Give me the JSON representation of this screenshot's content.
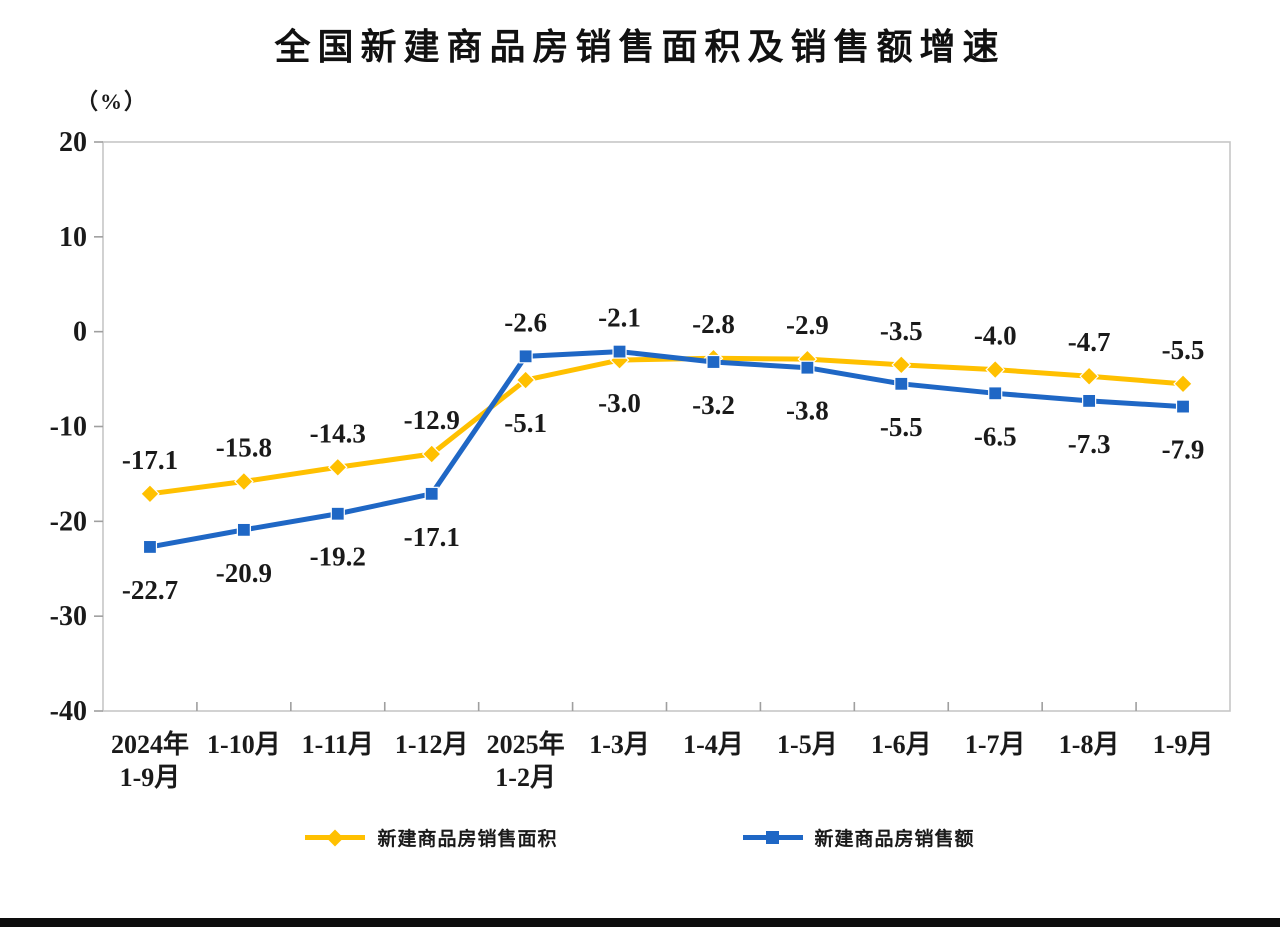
{
  "chart_data": {
    "type": "line",
    "title": "全国新建商品房销售面积及销售额增速",
    "unit_label": "（%）",
    "categories": [
      [
        "2024年",
        "1-9月"
      ],
      [
        "1-10月"
      ],
      [
        "1-11月"
      ],
      [
        "1-12月"
      ],
      [
        "2025年",
        "1-2月"
      ],
      [
        "1-3月"
      ],
      [
        "1-4月"
      ],
      [
        "1-5月"
      ],
      [
        "1-6月"
      ],
      [
        "1-7月"
      ],
      [
        "1-8月"
      ],
      [
        "1-9月"
      ]
    ],
    "series": [
      {
        "name": "新建商品房销售面积",
        "marker": "diamond",
        "color": "#FFC000",
        "values": [
          -17.1,
          -15.8,
          -14.3,
          -12.9,
          -5.1,
          -3.0,
          -2.8,
          -2.9,
          -3.5,
          -4.0,
          -4.7,
          -5.5
        ]
      },
      {
        "name": "新建商品房销售额",
        "marker": "square",
        "color": "#1F67C5",
        "values": [
          -22.7,
          -20.9,
          -19.2,
          -17.1,
          -2.6,
          -2.1,
          -3.2,
          -3.8,
          -5.5,
          -6.5,
          -7.3,
          -7.9
        ]
      }
    ],
    "ylim": [
      -40,
      20
    ],
    "yticks": [
      20,
      10,
      0,
      -10,
      -20,
      -30,
      -40
    ],
    "grid": false,
    "legend_position": "bottom",
    "axis_color": "#c6c6c6",
    "tick_color": "#9f9f9f",
    "label_color": "#1a1a1a"
  }
}
